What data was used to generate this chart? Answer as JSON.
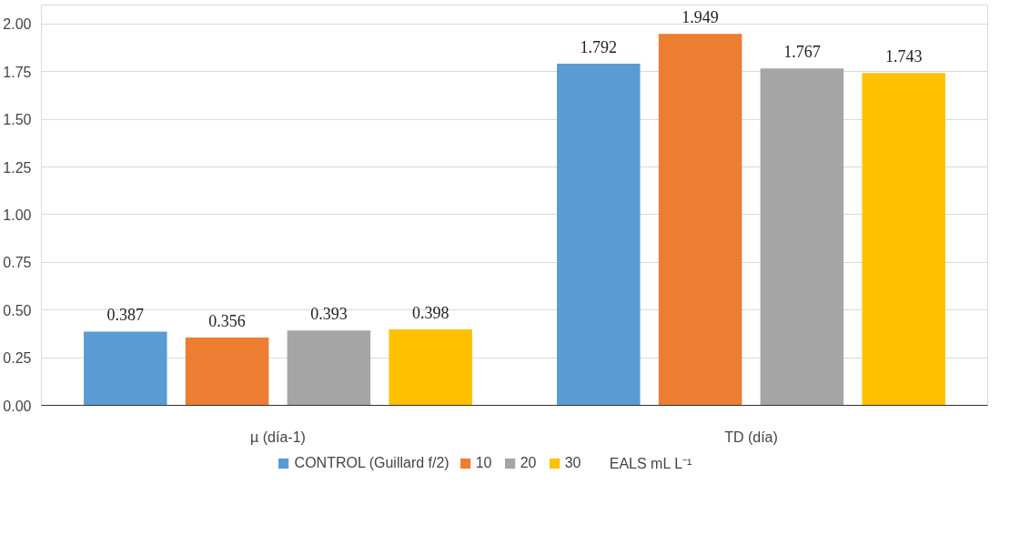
{
  "chart_data": {
    "type": "bar",
    "categories": [
      "µ (día-1)",
      "TD (día)"
    ],
    "series": [
      {
        "name": "CONTROL (Guillard f/2)",
        "color": "#5b9bd5",
        "values": [
          0.387,
          1.792
        ]
      },
      {
        "name": "10",
        "color": "#ed7d31",
        "values": [
          0.356,
          1.949
        ]
      },
      {
        "name": "20",
        "color": "#a5a5a5",
        "values": [
          0.393,
          1.767
        ]
      },
      {
        "name": "30",
        "color": "#ffc000",
        "values": [
          0.398,
          1.743
        ]
      }
    ],
    "legend_title": "EALS mL L⁻¹",
    "ylim": [
      0,
      2.1
    ],
    "yticks": [
      {
        "value": 0,
        "label": "0.00"
      },
      {
        "value": 0.25,
        "label": "0.25"
      },
      {
        "value": 0.5,
        "label": "0.50"
      },
      {
        "value": 0.75,
        "label": "0.75"
      },
      {
        "value": 1,
        "label": "1.00"
      },
      {
        "value": 1.25,
        "label": "1.25"
      },
      {
        "value": 1.5,
        "label": "1.50"
      },
      {
        "value": 1.75,
        "label": "1.75"
      },
      {
        "value": 2,
        "label": "2.00"
      }
    ],
    "grid": "y",
    "legend": "bottom",
    "data_labels": true
  }
}
